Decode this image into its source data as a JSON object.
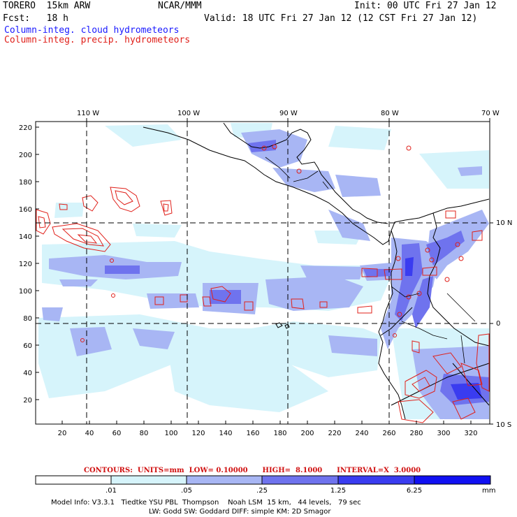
{
  "header": {
    "model": "TORERO  15km ARW",
    "org": "NCAR/MMM",
    "init": "Init: 00 UTC Fri 27 Jan 12",
    "fcst": "Fcst:   18 h",
    "valid": "Valid: 18 UTC Fri 27 Jan 12 (12 CST Fri 27 Jan 12)",
    "field1": "Column-integ. cloud hydrometeors",
    "field2": "Column-integ. precip. hydrometeors"
  },
  "map": {
    "top_lon_labels": [
      "110 W",
      "100 W",
      "90 W",
      "80 W",
      "70 W"
    ],
    "right_lat_labels": [
      "10 N",
      "0",
      "10 S"
    ],
    "left_grid_labels": [
      "220",
      "200",
      "180",
      "160",
      "140",
      "120",
      "100",
      "80",
      "60",
      "40",
      "20"
    ],
    "bottom_grid_labels": [
      "20",
      "40",
      "60",
      "80",
      "100",
      "120",
      "140",
      "160",
      "180",
      "200",
      "220",
      "240",
      "260",
      "280",
      "300",
      "320"
    ]
  },
  "contour_info": {
    "text": "CONTOURS:  UNITS=mm  LOW= 0.10000      HIGH=  8.1000      INTERVAL=X  3.0000"
  },
  "colorbar": {
    "ticks": [
      ".01",
      ".05",
      ".25",
      "1.25",
      "6.25"
    ],
    "unit": "mm",
    "colors": [
      "#ffffff",
      "#d6f4fb",
      "#a8b6f4",
      "#6f73ee",
      "#3a3cf0",
      "#1010f2"
    ]
  },
  "footer": {
    "line1": "Model Info: V3.3.1   Tiedtke YSU PBL  Thompson    Noah LSM  15 km,   44 levels,   79 sec",
    "line2": "LW: Godd SW: Goddard DIFF: simple KM: 2D Smagor"
  },
  "colors": {
    "cloud_label": "#1a1aff",
    "precip_label": "#e0201a",
    "precip_contour": "#e0201a"
  }
}
